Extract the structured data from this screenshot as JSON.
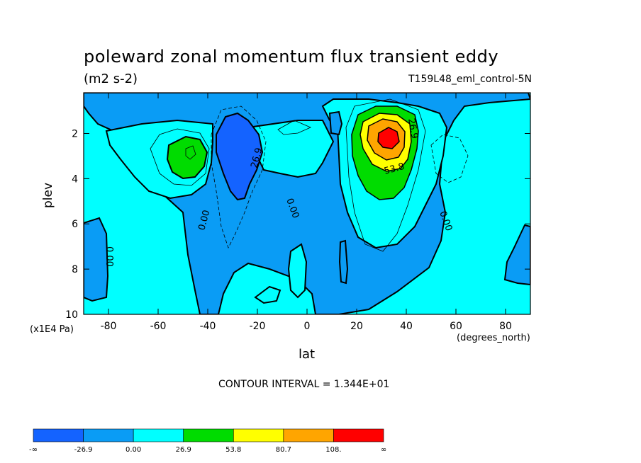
{
  "chart_data": {
    "type": "heatmap",
    "title": "poleward zonal momentum flux transient eddy",
    "units": "(m2 s-2)",
    "run_label": "T159L48_eml_control-5N",
    "xlabel": "lat",
    "ylabel": "plev",
    "x_units": "(degrees_north)",
    "y_units": "(x1E4 Pa)",
    "xlim": [
      -90,
      90
    ],
    "ylim": [
      10,
      0.2
    ],
    "x_ticks": [
      -80,
      -60,
      -40,
      -20,
      0,
      20,
      40,
      60,
      80
    ],
    "y_ticks": [
      2,
      4,
      6,
      8,
      10
    ],
    "contour_interval_text": "CONTOUR INTERVAL = 1.344E+01",
    "contour_labels": [
      "26.9",
      "0.00",
      "0.00",
      "26.9",
      "53.8",
      "0.00",
      "0.00"
    ],
    "colorbar": {
      "colors": [
        "#1463ff",
        "#0a9cf5",
        "#00ffff",
        "#00dc00",
        "#ffff00",
        "#ffa500",
        "#ff0000"
      ],
      "labels": [
        "-∞",
        "-26.9",
        "0.00",
        "26.9",
        "53.8",
        "80.7",
        "108.",
        "∞"
      ]
    }
  }
}
